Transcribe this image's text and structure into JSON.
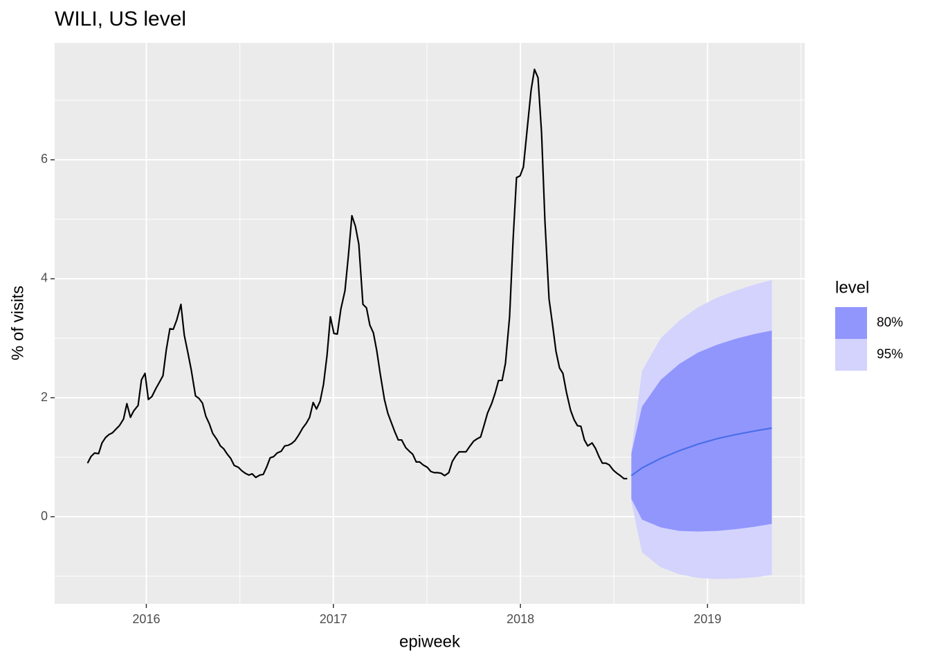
{
  "chart_data": {
    "type": "line",
    "title": "WILI, US level",
    "x_label": "epiweek",
    "y_label": "% of visits",
    "xlim": [
      2015.51,
      2019.52
    ],
    "ylim": [
      -1.465,
      7.965
    ],
    "xticks": [
      2016,
      2017,
      2018,
      2019
    ],
    "yticks": [
      0,
      2,
      4,
      6
    ],
    "grid": true,
    "legend": {
      "title": "level",
      "position": "right"
    },
    "series": [
      {
        "color": "#000000",
        "x": [
          2015.686,
          2015.704,
          2015.723,
          2015.745,
          2015.763,
          2015.782,
          2015.8,
          2015.819,
          2015.837,
          2015.856,
          2015.878,
          2015.896,
          2015.915,
          2015.933,
          2015.956,
          2015.974,
          2015.993,
          2016.011,
          2016.03,
          2016.052,
          2016.07,
          2016.089,
          2016.107,
          2016.126,
          2016.144,
          2016.163,
          2016.185,
          2016.203,
          2016.222,
          2016.24,
          2016.263,
          2016.281,
          2016.3,
          2016.318,
          2016.337,
          2016.355,
          2016.377,
          2016.396,
          2016.414,
          2016.433,
          2016.451,
          2016.47,
          2016.492,
          2016.511,
          2016.529,
          2016.548,
          2016.566,
          2016.585,
          2016.607,
          2016.625,
          2016.644,
          2016.662,
          2016.681,
          2016.699,
          2016.721,
          2016.74,
          2016.758,
          2016.777,
          2016.795,
          2016.814,
          2016.836,
          2016.855,
          2016.873,
          2016.892,
          2016.91,
          2016.929,
          2016.947,
          2016.966,
          2016.984,
          2017.003,
          2017.021,
          2017.04,
          2017.062,
          2017.08,
          2017.099,
          2017.118,
          2017.136,
          2017.158,
          2017.177,
          2017.195,
          2017.214,
          2017.232,
          2017.25,
          2017.273,
          2017.291,
          2017.31,
          2017.328,
          2017.347,
          2017.365,
          2017.387,
          2017.406,
          2017.424,
          2017.443,
          2017.461,
          2017.48,
          2017.502,
          2017.521,
          2017.539,
          2017.558,
          2017.576,
          2017.595,
          2017.617,
          2017.636,
          2017.654,
          2017.672,
          2017.691,
          2017.709,
          2017.731,
          2017.75,
          2017.769,
          2017.787,
          2017.805,
          2017.824,
          2017.846,
          2017.865,
          2017.883,
          2017.902,
          2017.92,
          2017.942,
          2017.961,
          2017.979,
          2017.998,
          2018.016,
          2018.035,
          2018.057,
          2018.075,
          2018.094,
          2018.113,
          2018.131,
          2018.153,
          2018.172,
          2018.19,
          2018.209,
          2018.227,
          2018.246,
          2018.268,
          2018.287,
          2018.305,
          2018.323,
          2018.342,
          2018.36,
          2018.383,
          2018.401,
          2018.42,
          2018.438,
          2018.457,
          2018.475,
          2018.497,
          2018.516,
          2018.534,
          2018.553,
          2018.571
        ],
        "values": [
          0.9,
          1.01,
          1.07,
          1.06,
          1.24,
          1.33,
          1.38,
          1.41,
          1.47,
          1.53,
          1.64,
          1.9,
          1.67,
          1.78,
          1.87,
          2.3,
          2.41,
          1.97,
          2.02,
          2.16,
          2.26,
          2.37,
          2.81,
          3.16,
          3.15,
          3.31,
          3.57,
          3.05,
          2.76,
          2.47,
          2.03,
          1.99,
          1.91,
          1.69,
          1.56,
          1.4,
          1.3,
          1.19,
          1.14,
          1.05,
          0.98,
          0.86,
          0.83,
          0.77,
          0.73,
          0.7,
          0.72,
          0.66,
          0.7,
          0.71,
          0.84,
          0.99,
          1.01,
          1.07,
          1.1,
          1.19,
          1.2,
          1.23,
          1.28,
          1.37,
          1.49,
          1.57,
          1.67,
          1.92,
          1.81,
          1.94,
          2.22,
          2.71,
          3.36,
          3.08,
          3.07,
          3.49,
          3.8,
          4.38,
          5.06,
          4.88,
          4.58,
          3.57,
          3.51,
          3.22,
          3.09,
          2.79,
          2.41,
          1.97,
          1.74,
          1.58,
          1.43,
          1.29,
          1.29,
          1.16,
          1.1,
          1.05,
          0.92,
          0.92,
          0.87,
          0.83,
          0.76,
          0.74,
          0.74,
          0.73,
          0.69,
          0.74,
          0.93,
          1.02,
          1.09,
          1.09,
          1.09,
          1.19,
          1.27,
          1.31,
          1.34,
          1.53,
          1.74,
          1.9,
          2.08,
          2.29,
          2.29,
          2.58,
          3.36,
          4.67,
          5.7,
          5.73,
          5.88,
          6.48,
          7.17,
          7.52,
          7.38,
          6.45,
          4.97,
          3.66,
          3.22,
          2.78,
          2.5,
          2.41,
          2.09,
          1.79,
          1.63,
          1.53,
          1.52,
          1.29,
          1.19,
          1.24,
          1.15,
          1.01,
          0.9,
          0.9,
          0.87,
          0.78,
          0.73,
          0.69,
          0.64,
          0.64
        ]
      },
      {
        "color": "#4a6ee8",
        "x": [
          2018.593,
          2018.65,
          2018.75,
          2018.85,
          2018.95,
          2019.05,
          2019.15,
          2019.25,
          2019.344
        ],
        "values": [
          0.69,
          0.82,
          0.98,
          1.11,
          1.22,
          1.31,
          1.38,
          1.44,
          1.49
        ]
      }
    ],
    "bands": [
      {
        "name": "80%",
        "color": "#9196fd",
        "x": [
          2018.593,
          2018.65,
          2018.75,
          2018.85,
          2018.95,
          2019.05,
          2019.15,
          2019.25,
          2019.344
        ],
        "lower": [
          0.3,
          -0.05,
          -0.18,
          -0.24,
          -0.25,
          -0.24,
          -0.21,
          -0.17,
          -0.12
        ],
        "upper": [
          1.06,
          1.85,
          2.3,
          2.57,
          2.76,
          2.89,
          2.99,
          3.07,
          3.13
        ]
      },
      {
        "name": "95%",
        "color": "#d3d3fd",
        "x": [
          2018.593,
          2018.65,
          2018.75,
          2018.85,
          2018.95,
          2019.05,
          2019.15,
          2019.25,
          2019.344
        ],
        "lower": [
          0.25,
          -0.6,
          -0.85,
          -0.97,
          -1.03,
          -1.05,
          -1.04,
          -1.02,
          -0.98
        ],
        "upper": [
          1.1,
          2.45,
          3.0,
          3.3,
          3.52,
          3.68,
          3.8,
          3.9,
          3.98
        ]
      }
    ]
  }
}
